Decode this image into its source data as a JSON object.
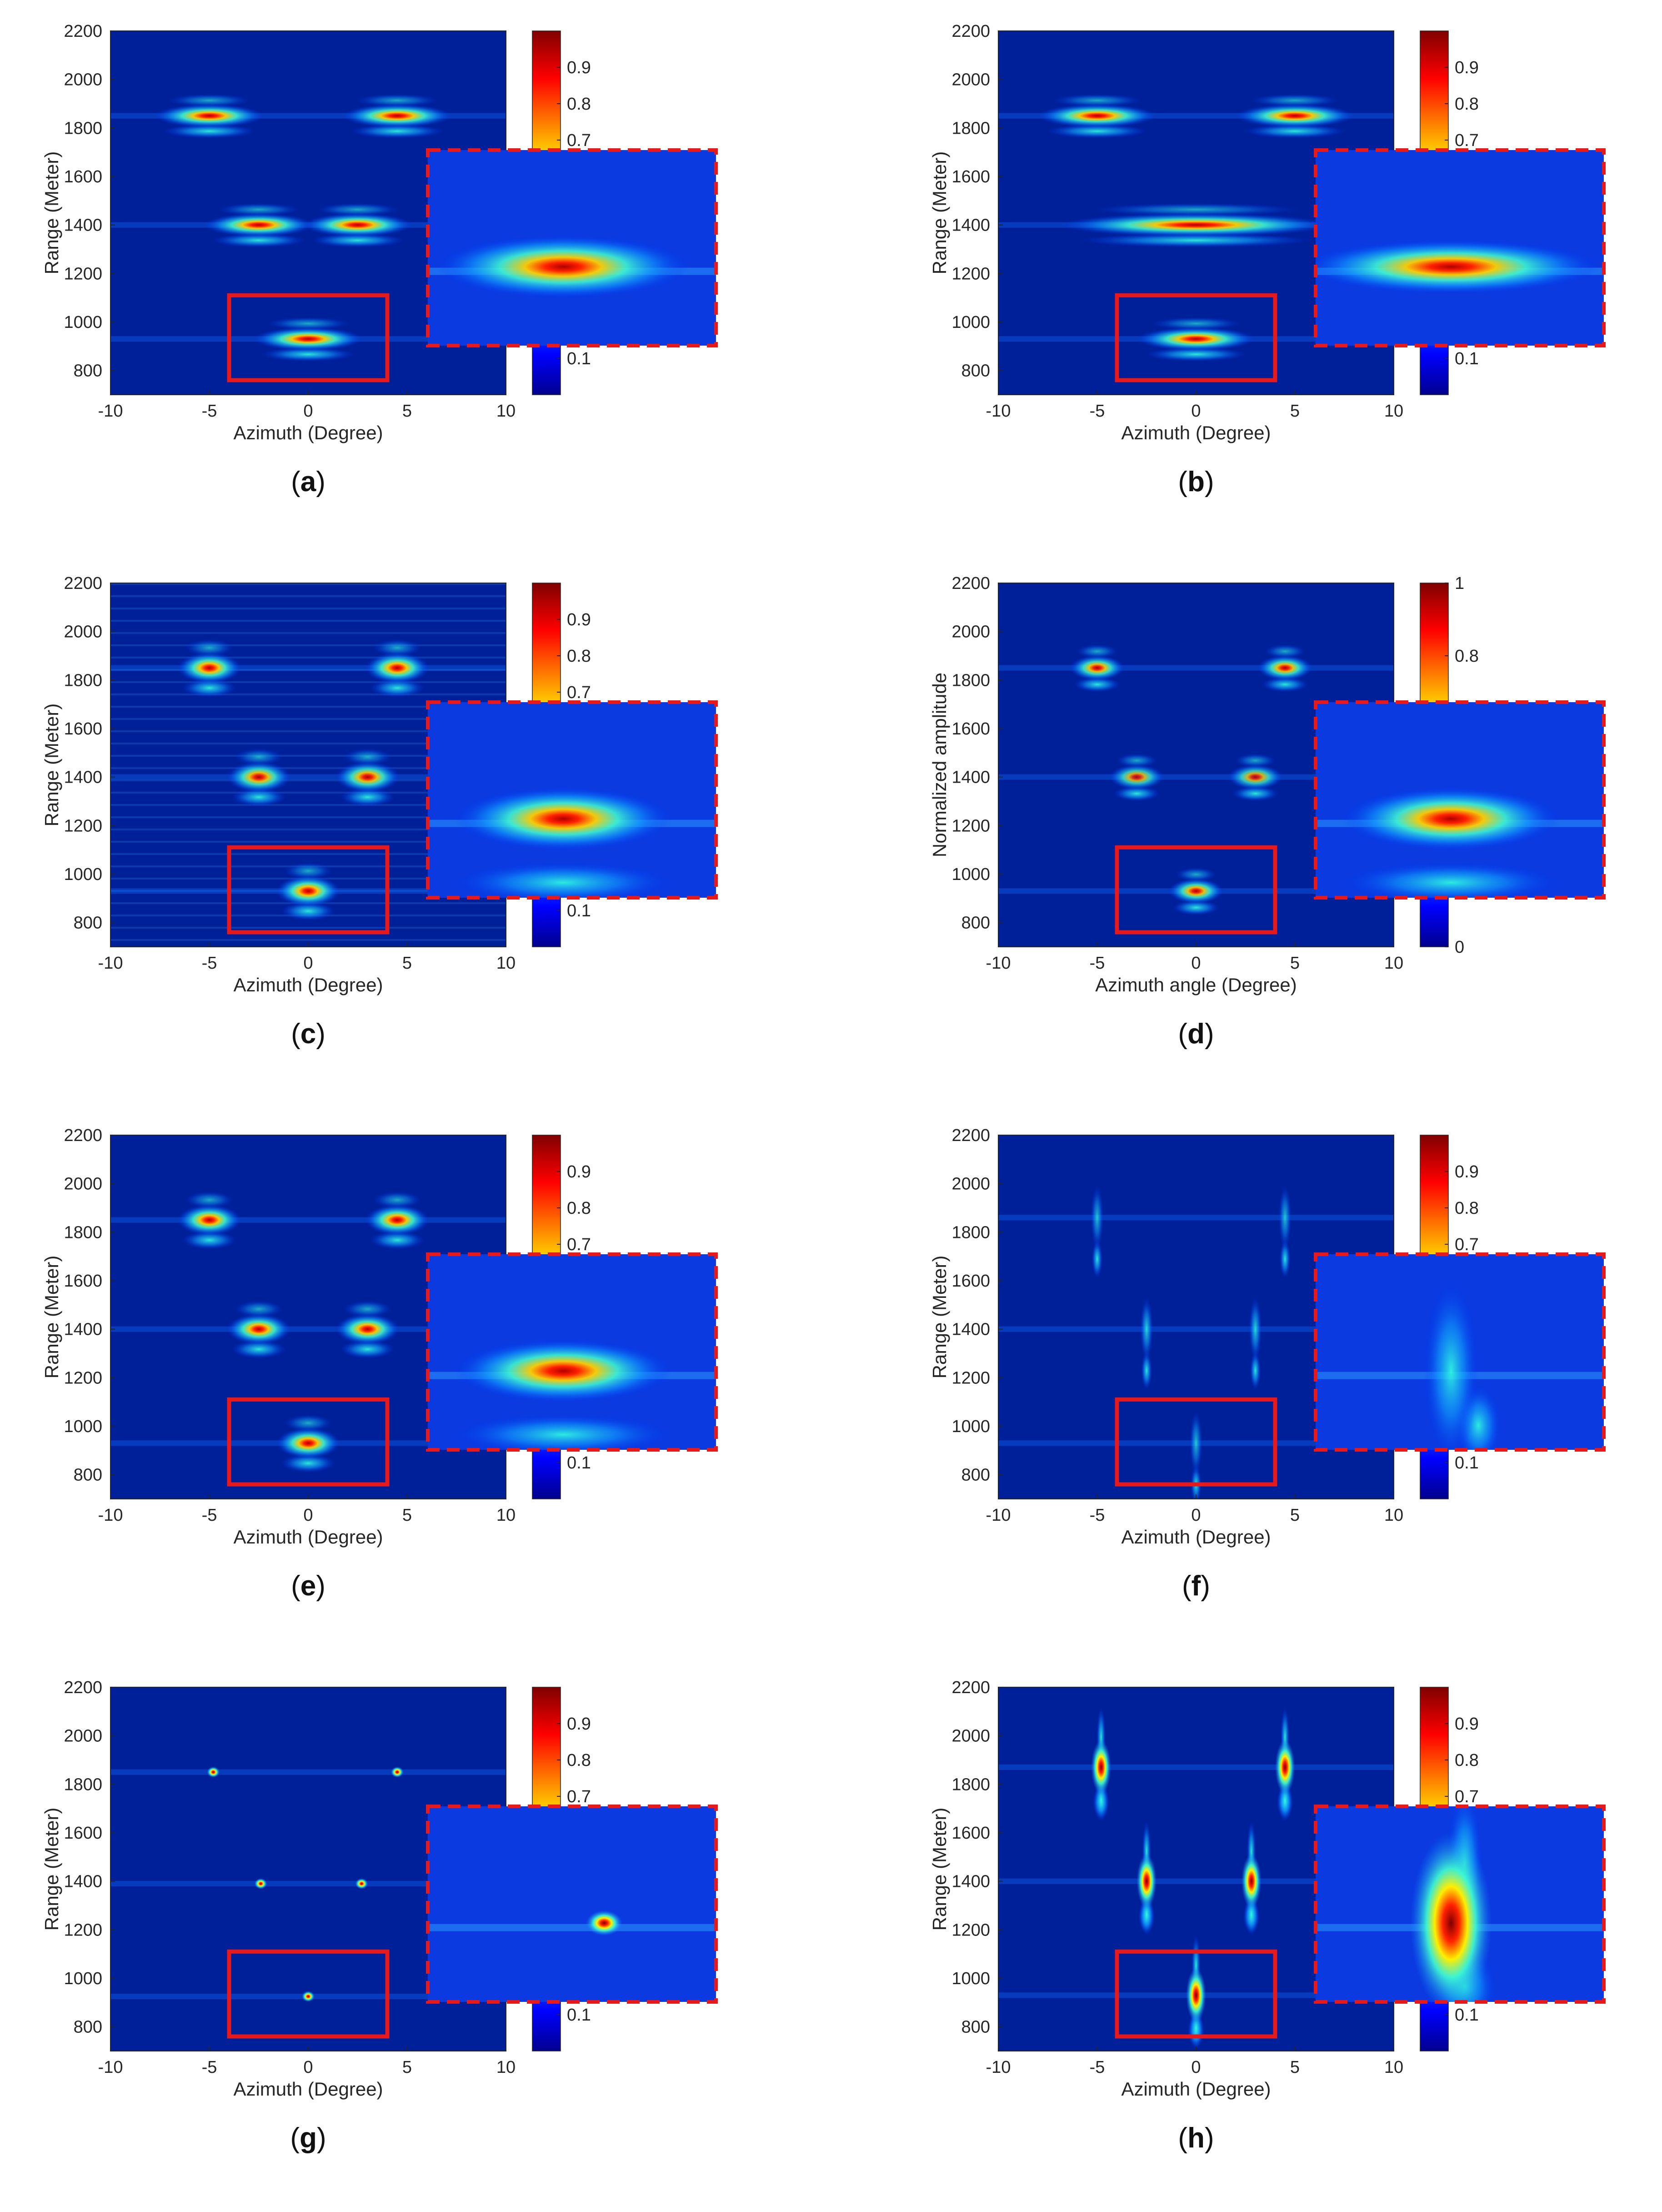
{
  "chart_data": [
    {
      "panel": "a",
      "type": "heatmap",
      "xlabel": "Azimuth (Degree)",
      "ylabel": "Range (Meter)",
      "xlim": [
        -10,
        10
      ],
      "ylim": [
        700,
        2200
      ],
      "xticks": [
        "-10",
        "-5",
        "0",
        "5",
        "10"
      ],
      "yticks": [
        "800",
        "1000",
        "1200",
        "1400",
        "1600",
        "1800",
        "2000",
        "2200"
      ],
      "colorbar_ticks": [
        "0.1",
        "0.7",
        "0.8",
        "0.9"
      ],
      "style": "smeared",
      "targets": [
        {
          "azimuth": -5,
          "range": 1850,
          "intensity": 0.9
        },
        {
          "azimuth": 4.5,
          "range": 1850,
          "intensity": 0.9
        },
        {
          "azimuth": -2.5,
          "range": 1400,
          "intensity": 0.9
        },
        {
          "azimuth": 2.5,
          "range": 1400,
          "intensity": 0.9
        },
        {
          "azimuth": 0,
          "range": 930,
          "intensity": 0.9
        }
      ],
      "zoom_box": {
        "azimuth": [
          -4,
          4
        ],
        "range": [
          760,
          1110
        ]
      }
    },
    {
      "panel": "b",
      "type": "heatmap",
      "xlabel": "Azimuth (Degree)",
      "ylabel": "Range (Meter)",
      "xlim": [
        -10,
        10
      ],
      "ylim": [
        700,
        2200
      ],
      "xticks": [
        "-10",
        "-5",
        "0",
        "5",
        "10"
      ],
      "yticks": [
        "800",
        "1000",
        "1200",
        "1400",
        "1600",
        "1800",
        "2000",
        "2200"
      ],
      "colorbar_ticks": [
        "0.1",
        "0.7",
        "0.8",
        "0.9"
      ],
      "style": "smooth-wide",
      "targets": [
        {
          "azimuth": -5,
          "range": 1850,
          "intensity": 0.95
        },
        {
          "azimuth": 5,
          "range": 1850,
          "intensity": 0.95
        },
        {
          "azimuth": 0,
          "range": 1400,
          "intensity": 0.9
        },
        {
          "azimuth": 0,
          "range": 930,
          "intensity": 0.95
        }
      ],
      "zoom_box": {
        "azimuth": [
          -4,
          4
        ],
        "range": [
          760,
          1110
        ]
      }
    },
    {
      "panel": "c",
      "type": "heatmap",
      "xlabel": "Azimuth (Degree)",
      "ylabel": "Range (Meter)",
      "xlim": [
        -10,
        10
      ],
      "ylim": [
        700,
        2200
      ],
      "xticks": [
        "-10",
        "-5",
        "0",
        "5",
        "10"
      ],
      "yticks": [
        "800",
        "1000",
        "1200",
        "1400",
        "1600",
        "1800",
        "2000",
        "2200"
      ],
      "colorbar_ticks": [
        "0.1",
        "0.7",
        "0.8",
        "0.9"
      ],
      "style": "ripple",
      "targets": [
        {
          "azimuth": -5,
          "range": 1850,
          "intensity": 0.95
        },
        {
          "azimuth": 4.5,
          "range": 1850,
          "intensity": 0.95
        },
        {
          "azimuth": -2.5,
          "range": 1400,
          "intensity": 0.85
        },
        {
          "azimuth": 3,
          "range": 1400,
          "intensity": 0.85
        },
        {
          "azimuth": 0,
          "range": 930,
          "intensity": 0.95
        }
      ],
      "zoom_box": {
        "azimuth": [
          -4,
          4
        ],
        "range": [
          760,
          1110
        ]
      }
    },
    {
      "panel": "d",
      "type": "heatmap",
      "xlabel": "Azimuth angle (Degree)",
      "ylabel": "Normalized amplitude",
      "xlim": [
        -10,
        10
      ],
      "ylim": [
        700,
        2200
      ],
      "xticks": [
        "-10",
        "-5",
        "0",
        "5",
        "10"
      ],
      "yticks": [
        "800",
        "1000",
        "1200",
        "1400",
        "1600",
        "1800",
        "2000",
        "2200"
      ],
      "colorbar_ticks": [
        "0",
        "0.8",
        "1"
      ],
      "style": "speckle",
      "targets": [
        {
          "azimuth": -5,
          "range": 1850,
          "intensity": 0.85
        },
        {
          "azimuth": 4.5,
          "range": 1850,
          "intensity": 0.85
        },
        {
          "azimuth": -3,
          "range": 1400,
          "intensity": 0.75
        },
        {
          "azimuth": 3,
          "range": 1400,
          "intensity": 0.75
        },
        {
          "azimuth": 0,
          "range": 930,
          "intensity": 0.85
        }
      ],
      "zoom_box": {
        "azimuth": [
          -4,
          4
        ],
        "range": [
          760,
          1110
        ]
      }
    },
    {
      "panel": "e",
      "type": "heatmap",
      "xlabel": "Azimuth (Degree)",
      "ylabel": "Range (Meter)",
      "xlim": [
        -10,
        10
      ],
      "ylim": [
        700,
        2200
      ],
      "xticks": [
        "-10",
        "-5",
        "0",
        "5",
        "10"
      ],
      "yticks": [
        "800",
        "1000",
        "1200",
        "1400",
        "1600",
        "1800",
        "2000",
        "2200"
      ],
      "colorbar_ticks": [
        "0.1",
        "0.7",
        "0.8",
        "0.9"
      ],
      "style": "smooth",
      "targets": [
        {
          "azimuth": -5,
          "range": 1850,
          "intensity": 0.95
        },
        {
          "azimuth": 4.5,
          "range": 1850,
          "intensity": 0.95
        },
        {
          "azimuth": -2.5,
          "range": 1400,
          "intensity": 0.95
        },
        {
          "azimuth": 3,
          "range": 1400,
          "intensity": 0.95
        },
        {
          "azimuth": 0,
          "range": 930,
          "intensity": 0.95
        }
      ],
      "zoom_box": {
        "azimuth": [
          -4,
          4
        ],
        "range": [
          760,
          1110
        ]
      }
    },
    {
      "panel": "f",
      "type": "heatmap",
      "xlabel": "Azimuth (Degree)",
      "ylabel": "Range (Meter)",
      "xlim": [
        -10,
        10
      ],
      "ylim": [
        700,
        2200
      ],
      "xticks": [
        "-10",
        "-5",
        "0",
        "5",
        "10"
      ],
      "yticks": [
        "800",
        "1000",
        "1200",
        "1400",
        "1600",
        "1800",
        "2000",
        "2200"
      ],
      "colorbar_ticks": [
        "0.1",
        "0.7",
        "0.8",
        "0.9"
      ],
      "style": "streak",
      "targets": [
        {
          "azimuth": -5,
          "range": 1860,
          "intensity": 0.7
        },
        {
          "azimuth": 4.5,
          "range": 1860,
          "intensity": 0.7
        },
        {
          "azimuth": -2.5,
          "range": 1400,
          "intensity": 0.8
        },
        {
          "azimuth": 3,
          "range": 1400,
          "intensity": 0.8
        },
        {
          "azimuth": 0,
          "range": 930,
          "intensity": 0.7
        }
      ],
      "zoom_box": {
        "azimuth": [
          -4,
          4
        ],
        "range": [
          760,
          1110
        ]
      }
    },
    {
      "panel": "g",
      "type": "heatmap",
      "xlabel": "Azimuth (Degree)",
      "ylabel": "Range (Meter)",
      "xlim": [
        -10,
        10
      ],
      "ylim": [
        700,
        2200
      ],
      "xticks": [
        "-10",
        "-5",
        "0",
        "5",
        "10"
      ],
      "yticks": [
        "800",
        "1000",
        "1200",
        "1400",
        "1600",
        "1800",
        "2000",
        "2200"
      ],
      "colorbar_ticks": [
        "0.1",
        "0.7",
        "0.8",
        "0.9"
      ],
      "style": "point",
      "targets": [
        {
          "azimuth": -4.8,
          "range": 1850,
          "intensity": 0.9
        },
        {
          "azimuth": 4.5,
          "range": 1850,
          "intensity": 0.9
        },
        {
          "azimuth": -2.4,
          "range": 1390,
          "intensity": 0.9
        },
        {
          "azimuth": 2.7,
          "range": 1390,
          "intensity": 0.9
        },
        {
          "azimuth": 0,
          "range": 925,
          "intensity": 0.9
        }
      ],
      "zoom_box": {
        "azimuth": [
          -4,
          4
        ],
        "range": [
          760,
          1110
        ]
      }
    },
    {
      "panel": "h",
      "type": "heatmap",
      "xlabel": "Azimuth (Degree)",
      "ylabel": "Range (Meter)",
      "xlim": [
        -10,
        10
      ],
      "ylim": [
        700,
        2200
      ],
      "xticks": [
        "-10",
        "-5",
        "0",
        "5",
        "10"
      ],
      "yticks": [
        "800",
        "1000",
        "1200",
        "1400",
        "1600",
        "1800",
        "2000",
        "2200"
      ],
      "colorbar_ticks": [
        "0.1",
        "0.7",
        "0.8",
        "0.9"
      ],
      "style": "vertical",
      "targets": [
        {
          "azimuth": -4.8,
          "range": 1870,
          "intensity": 1.0
        },
        {
          "azimuth": 4.5,
          "range": 1870,
          "intensity": 1.0
        },
        {
          "azimuth": -2.5,
          "range": 1400,
          "intensity": 1.0
        },
        {
          "azimuth": 2.8,
          "range": 1400,
          "intensity": 1.0
        },
        {
          "azimuth": 0,
          "range": 930,
          "intensity": 1.0
        }
      ],
      "zoom_box": {
        "azimuth": [
          -4,
          4
        ],
        "range": [
          760,
          1110
        ]
      }
    }
  ],
  "panel_labels": [
    "a",
    "b",
    "c",
    "d",
    "e",
    "f",
    "g",
    "h"
  ],
  "colors": {
    "zoom_box": "#e8191a",
    "background_blue": "#00209a",
    "axis": "#262626"
  }
}
